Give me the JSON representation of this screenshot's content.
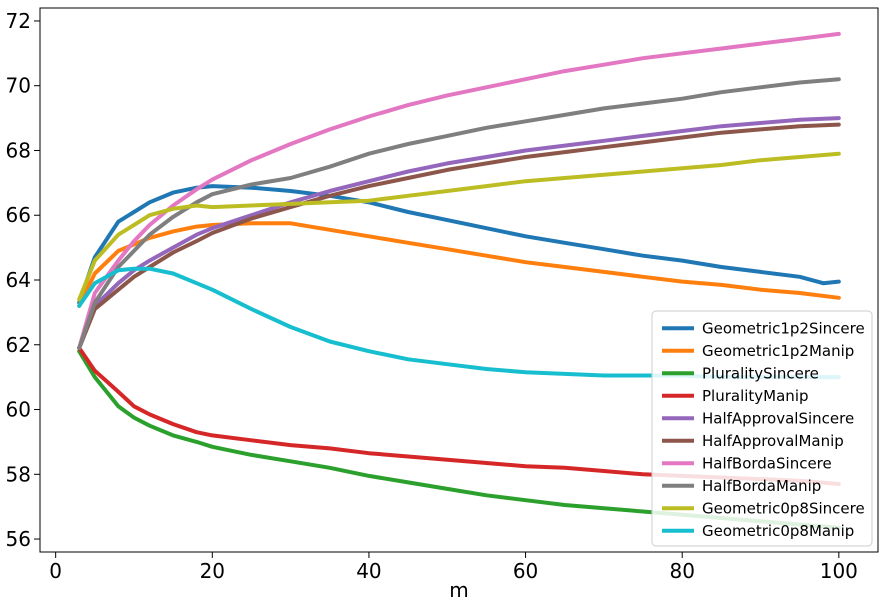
{
  "chart_data": {
    "type": "line",
    "title": "",
    "xlabel": "m",
    "ylabel": "",
    "xlim": [
      -2,
      105
    ],
    "ylim": [
      55.6,
      72.4
    ],
    "xticks": [
      0,
      20,
      40,
      60,
      80,
      100
    ],
    "yticks": [
      56,
      58,
      60,
      62,
      64,
      66,
      68,
      70,
      72
    ],
    "grid": false,
    "legend_position": "lower-right",
    "series": [
      {
        "name": "Geometric1p2Sincere",
        "color": "#1f77b4",
        "x": [
          3,
          5,
          8,
          10,
          12,
          15,
          18,
          20,
          25,
          30,
          35,
          40,
          45,
          50,
          55,
          60,
          65,
          70,
          75,
          80,
          85,
          90,
          95,
          98,
          100
        ],
        "y": [
          63.3,
          64.7,
          65.8,
          66.1,
          66.4,
          66.7,
          66.85,
          66.9,
          66.85,
          66.75,
          66.6,
          66.4,
          66.1,
          65.85,
          65.6,
          65.35,
          65.15,
          64.95,
          64.75,
          64.6,
          64.4,
          64.25,
          64.1,
          63.9,
          63.95
        ]
      },
      {
        "name": "Geometric1p2Manip",
        "color": "#ff7f0e",
        "x": [
          3,
          5,
          8,
          10,
          12,
          15,
          18,
          20,
          25,
          30,
          35,
          40,
          45,
          50,
          55,
          60,
          65,
          70,
          75,
          80,
          85,
          90,
          95,
          100
        ],
        "y": [
          63.2,
          64.2,
          64.9,
          65.1,
          65.3,
          65.5,
          65.65,
          65.7,
          65.75,
          65.75,
          65.55,
          65.35,
          65.15,
          64.95,
          64.75,
          64.55,
          64.4,
          64.25,
          64.1,
          63.95,
          63.85,
          63.7,
          63.6,
          63.45
        ]
      },
      {
        "name": "PluralitySincere",
        "color": "#2ca02c",
        "x": [
          3,
          5,
          8,
          10,
          12,
          15,
          18,
          20,
          25,
          30,
          35,
          40,
          45,
          50,
          55,
          60,
          65,
          70,
          75,
          80,
          85,
          90,
          95,
          100
        ],
        "y": [
          61.8,
          61.0,
          60.1,
          59.75,
          59.5,
          59.2,
          59.0,
          58.85,
          58.6,
          58.4,
          58.2,
          57.95,
          57.75,
          57.55,
          57.35,
          57.2,
          57.05,
          56.95,
          56.85,
          56.75,
          56.65,
          56.55,
          56.45,
          56.35
        ]
      },
      {
        "name": "PluralityManip",
        "color": "#d62728",
        "x": [
          3,
          5,
          8,
          10,
          12,
          15,
          18,
          20,
          25,
          30,
          35,
          40,
          45,
          50,
          55,
          60,
          65,
          70,
          75,
          80,
          85,
          90,
          95,
          100
        ],
        "y": [
          61.9,
          61.2,
          60.55,
          60.1,
          59.85,
          59.55,
          59.3,
          59.2,
          59.05,
          58.9,
          58.8,
          58.65,
          58.55,
          58.45,
          58.35,
          58.25,
          58.2,
          58.1,
          58.0,
          57.95,
          57.9,
          57.85,
          57.8,
          57.7
        ]
      },
      {
        "name": "HalfApprovalSincere",
        "color": "#9467bd",
        "x": [
          3,
          5,
          8,
          10,
          12,
          15,
          18,
          20,
          25,
          30,
          35,
          40,
          45,
          50,
          55,
          60,
          65,
          70,
          75,
          80,
          85,
          90,
          95,
          100
        ],
        "y": [
          61.9,
          63.2,
          63.9,
          64.3,
          64.6,
          65.0,
          65.4,
          65.6,
          66.0,
          66.4,
          66.75,
          67.05,
          67.35,
          67.6,
          67.8,
          68.0,
          68.15,
          68.3,
          68.45,
          68.6,
          68.75,
          68.85,
          68.95,
          69.0
        ]
      },
      {
        "name": "HalfApprovalManip",
        "color": "#8c564b",
        "x": [
          3,
          5,
          8,
          10,
          12,
          15,
          18,
          20,
          25,
          30,
          35,
          40,
          45,
          50,
          55,
          60,
          65,
          70,
          75,
          80,
          85,
          90,
          95,
          100
        ],
        "y": [
          61.9,
          63.1,
          63.7,
          64.1,
          64.4,
          64.85,
          65.2,
          65.45,
          65.9,
          66.25,
          66.6,
          66.9,
          67.15,
          67.4,
          67.6,
          67.8,
          67.95,
          68.1,
          68.25,
          68.4,
          68.55,
          68.65,
          68.75,
          68.8
        ]
      },
      {
        "name": "HalfBordaSincere",
        "color": "#e377c2",
        "x": [
          3,
          5,
          8,
          10,
          12,
          15,
          18,
          20,
          25,
          30,
          35,
          40,
          45,
          50,
          55,
          60,
          65,
          70,
          75,
          80,
          85,
          90,
          95,
          100
        ],
        "y": [
          61.9,
          63.6,
          64.6,
          65.2,
          65.7,
          66.3,
          66.8,
          67.1,
          67.7,
          68.2,
          68.65,
          69.05,
          69.4,
          69.7,
          69.95,
          70.2,
          70.45,
          70.65,
          70.85,
          71.0,
          71.15,
          71.3,
          71.45,
          71.6
        ]
      },
      {
        "name": "HalfBordaManip",
        "color": "#7f7f7f",
        "x": [
          3,
          5,
          8,
          10,
          12,
          15,
          18,
          20,
          25,
          30,
          35,
          40,
          45,
          50,
          55,
          60,
          65,
          70,
          75,
          80,
          85,
          90,
          95,
          100
        ],
        "y": [
          61.9,
          63.3,
          64.4,
          64.9,
          65.4,
          65.95,
          66.4,
          66.65,
          66.95,
          67.15,
          67.5,
          67.9,
          68.2,
          68.45,
          68.7,
          68.9,
          69.1,
          69.3,
          69.45,
          69.6,
          69.8,
          69.95,
          70.1,
          70.2
        ]
      },
      {
        "name": "Geometric0p8Sincere",
        "color": "#bcbd22",
        "x": [
          3,
          5,
          8,
          10,
          12,
          15,
          18,
          20,
          25,
          30,
          35,
          40,
          45,
          50,
          55,
          60,
          65,
          70,
          75,
          80,
          85,
          90,
          95,
          100
        ],
        "y": [
          63.4,
          64.6,
          65.4,
          65.7,
          66.0,
          66.2,
          66.3,
          66.25,
          66.3,
          66.35,
          66.4,
          66.45,
          66.6,
          66.75,
          66.9,
          67.05,
          67.15,
          67.25,
          67.35,
          67.45,
          67.55,
          67.7,
          67.8,
          67.9
        ]
      },
      {
        "name": "Geometric0p8Manip",
        "color": "#17becf",
        "x": [
          3,
          5,
          8,
          10,
          12,
          15,
          18,
          20,
          25,
          30,
          35,
          40,
          45,
          50,
          55,
          60,
          65,
          70,
          75,
          80,
          85,
          90,
          95,
          100
        ],
        "y": [
          63.2,
          63.9,
          64.3,
          64.35,
          64.35,
          64.2,
          63.9,
          63.7,
          63.1,
          62.55,
          62.1,
          61.8,
          61.55,
          61.4,
          61.25,
          61.15,
          61.1,
          61.05,
          61.05,
          61.05,
          61.0,
          61.0,
          61.0,
          61.0
        ]
      }
    ]
  }
}
